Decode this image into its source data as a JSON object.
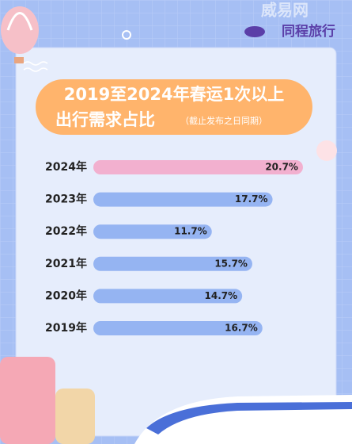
{
  "header": {
    "brand": "同程旅行",
    "watermark": "威易网"
  },
  "chart_data": {
    "type": "bar",
    "orientation": "horizontal",
    "title": "2019至2024年春运1次以上",
    "subtitle": "出行需求占比",
    "note": "（截止发布之日同期）",
    "categories": [
      "2024年",
      "2023年",
      "2022年",
      "2021年",
      "2020年",
      "2019年"
    ],
    "values": [
      20.7,
      17.7,
      11.7,
      15.7,
      14.7,
      16.7
    ],
    "value_labels": [
      "20.7%",
      "17.7%",
      "11.7%",
      "15.7%",
      "14.7%",
      "16.7%"
    ],
    "colors": [
      "#f2b0cf",
      "#95b4f2",
      "#95b4f2",
      "#95b4f2",
      "#95b4f2",
      "#95b4f2"
    ]
  }
}
